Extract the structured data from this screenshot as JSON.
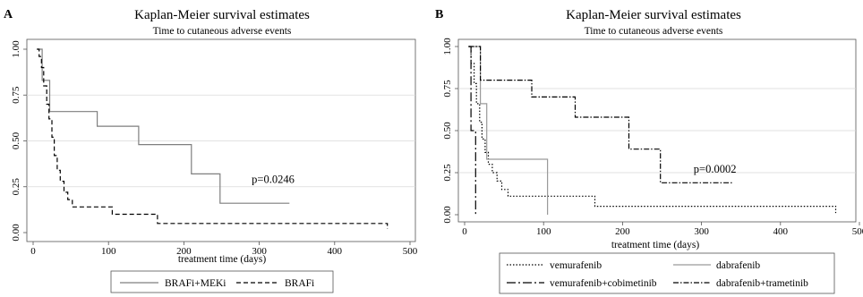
{
  "chart_data": [
    {
      "panel": "A",
      "type": "line",
      "title": "Kaplan-Meier survival estimates",
      "subtitle": "Time to cutaneous adverse events",
      "xlabel": "treatment time (days)",
      "ylabel": "",
      "xlim": [
        0,
        500
      ],
      "ylim": [
        0,
        1
      ],
      "xticks": [
        0,
        100,
        200,
        300,
        400,
        500
      ],
      "yticks": [
        0.0,
        0.25,
        0.5,
        0.75,
        1.0
      ],
      "ytick_labels": [
        "0.00",
        "0.25",
        "0.50",
        "0.75",
        "1.00"
      ],
      "grid": "horizontal",
      "annotation": {
        "text": "p=0.0246",
        "x": 290,
        "y": 0.27
      },
      "legend_placement": "bottom",
      "series": [
        {
          "name": "BRAFi+MEKi",
          "style": "solid",
          "color": "#7f7f7f",
          "points": [
            [
              5,
              1.0
            ],
            [
              12,
              1.0
            ],
            [
              12,
              0.83
            ],
            [
              22,
              0.83
            ],
            [
              22,
              0.66
            ],
            [
              85,
              0.66
            ],
            [
              85,
              0.58
            ],
            [
              140,
              0.58
            ],
            [
              140,
              0.48
            ],
            [
              210,
              0.48
            ],
            [
              210,
              0.32
            ],
            [
              248,
              0.32
            ],
            [
              248,
              0.16
            ],
            [
              340,
              0.16
            ]
          ]
        },
        {
          "name": "BRAFi",
          "style": "dashed",
          "color": "#000000",
          "points": [
            [
              5,
              1.0
            ],
            [
              8,
              1.0
            ],
            [
              8,
              0.96
            ],
            [
              11,
              0.96
            ],
            [
              11,
              0.9
            ],
            [
              14,
              0.9
            ],
            [
              14,
              0.8
            ],
            [
              18,
              0.8
            ],
            [
              18,
              0.7
            ],
            [
              21,
              0.7
            ],
            [
              21,
              0.62
            ],
            [
              25,
              0.62
            ],
            [
              25,
              0.52
            ],
            [
              28,
              0.52
            ],
            [
              28,
              0.42
            ],
            [
              32,
              0.42
            ],
            [
              32,
              0.34
            ],
            [
              36,
              0.34
            ],
            [
              36,
              0.28
            ],
            [
              41,
              0.28
            ],
            [
              41,
              0.22
            ],
            [
              46,
              0.22
            ],
            [
              46,
              0.18
            ],
            [
              52,
              0.18
            ],
            [
              52,
              0.14
            ],
            [
              105,
              0.14
            ],
            [
              105,
              0.1
            ],
            [
              165,
              0.1
            ],
            [
              165,
              0.05
            ],
            [
              470,
              0.05
            ],
            [
              470,
              0.02
            ]
          ]
        }
      ]
    },
    {
      "panel": "B",
      "type": "line",
      "title": "Kaplan-Meier survival estimates",
      "subtitle": "Time to cutaneous adverse events",
      "xlabel": "treatment time (days)",
      "ylabel": "",
      "xlim": [
        0,
        500
      ],
      "ylim": [
        0,
        1
      ],
      "xticks": [
        0,
        100,
        200,
        300,
        400,
        500
      ],
      "yticks": [
        0.0,
        0.25,
        0.5,
        0.75,
        1.0
      ],
      "ytick_labels": [
        "0.00",
        "0.25",
        "0.50",
        "0.75",
        "1.00"
      ],
      "grid": "horizontal",
      "annotation": {
        "text": "p=0.0002",
        "x": 290,
        "y": 0.25
      },
      "legend_placement": "bottom",
      "series": [
        {
          "name": "vemurafenib",
          "style": "dotted",
          "color": "#000000",
          "points": [
            [
              5,
              1.0
            ],
            [
              8,
              1.0
            ],
            [
              8,
              0.9
            ],
            [
              12,
              0.9
            ],
            [
              12,
              0.78
            ],
            [
              15,
              0.78
            ],
            [
              15,
              0.66
            ],
            [
              19,
              0.66
            ],
            [
              19,
              0.55
            ],
            [
              22,
              0.55
            ],
            [
              22,
              0.45
            ],
            [
              26,
              0.45
            ],
            [
              26,
              0.37
            ],
            [
              30,
              0.37
            ],
            [
              30,
              0.3
            ],
            [
              35,
              0.3
            ],
            [
              35,
              0.25
            ],
            [
              41,
              0.25
            ],
            [
              41,
              0.2
            ],
            [
              47,
              0.2
            ],
            [
              47,
              0.15
            ],
            [
              55,
              0.15
            ],
            [
              55,
              0.11
            ],
            [
              165,
              0.11
            ],
            [
              165,
              0.05
            ],
            [
              470,
              0.05
            ],
            [
              470,
              0.01
            ]
          ]
        },
        {
          "name": "dabrafenib",
          "style": "solid",
          "color": "#9a9a9a",
          "points": [
            [
              10,
              1.0
            ],
            [
              20,
              1.0
            ],
            [
              20,
              0.66
            ],
            [
              28,
              0.66
            ],
            [
              28,
              0.33
            ],
            [
              105,
              0.33
            ],
            [
              105,
              0.0
            ]
          ]
        },
        {
          "name": "vemurafenib+cobimetinib",
          "style": "longdash",
          "color": "#000000",
          "points": [
            [
              5,
              1.0
            ],
            [
              8,
              1.0
            ],
            [
              8,
              0.5
            ],
            [
              14,
              0.5
            ],
            [
              14,
              0.0
            ]
          ]
        },
        {
          "name": "dabrafenib+trametinib",
          "style": "dashdot",
          "color": "#000000",
          "points": [
            [
              5,
              1.0
            ],
            [
              20,
              1.0
            ],
            [
              20,
              0.8
            ],
            [
              85,
              0.8
            ],
            [
              85,
              0.7
            ],
            [
              140,
              0.7
            ],
            [
              140,
              0.58
            ],
            [
              208,
              0.58
            ],
            [
              208,
              0.39
            ],
            [
              248,
              0.39
            ],
            [
              248,
              0.19
            ],
            [
              340,
              0.19
            ]
          ]
        }
      ]
    }
  ]
}
